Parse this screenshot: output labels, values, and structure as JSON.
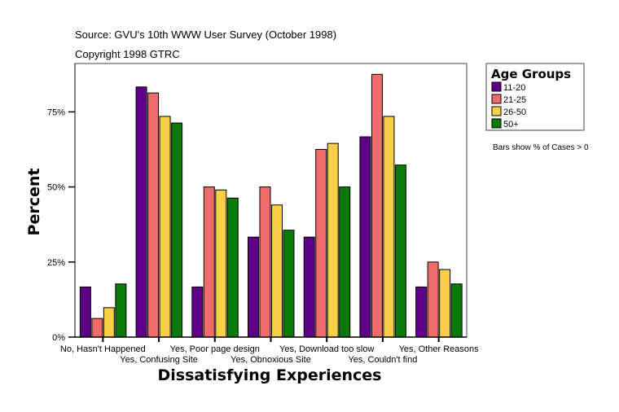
{
  "header": {
    "source": "Source: GVU's 10th WWW User Survey (October 1998)",
    "copyright": "Copyright 1998 GTRC"
  },
  "footnote": "Bars show % of Cases > 0",
  "chart_data": {
    "type": "bar",
    "xlabel": "Dissatisfying Experiences",
    "ylabel": "Percent",
    "ylim": [
      0,
      91
    ],
    "yticks": [
      0,
      25,
      50,
      75
    ],
    "ytick_labels": [
      "0%",
      "25%",
      "50%",
      "75%"
    ],
    "grid": false,
    "legend": {
      "title": "Age Groups",
      "placement": "right"
    },
    "categories": [
      "No, Hasn't Happened",
      "Yes, Confusing Site",
      "Yes, Poor page design",
      "Yes, Obnoxious Site",
      "Yes, Download too slow",
      "Yes, Couldn't find",
      "Yes, Other Reasons"
    ],
    "series": [
      {
        "name": "11-20",
        "color": "#5f0088",
        "values": [
          16.7,
          83.3,
          16.7,
          33.3,
          33.3,
          66.7,
          16.7
        ]
      },
      {
        "name": "21-25",
        "color": "#f06c6c",
        "values": [
          6.2,
          81.3,
          50.0,
          50.0,
          62.5,
          87.5,
          25.0
        ]
      },
      {
        "name": "26-50",
        "color": "#f8d048",
        "values": [
          9.8,
          73.5,
          49.0,
          44.0,
          64.5,
          73.5,
          22.5
        ]
      },
      {
        "name": "50+",
        "color": "#0a7a0a",
        "values": [
          17.7,
          71.3,
          46.3,
          35.6,
          50.0,
          57.3,
          17.7
        ]
      }
    ]
  }
}
